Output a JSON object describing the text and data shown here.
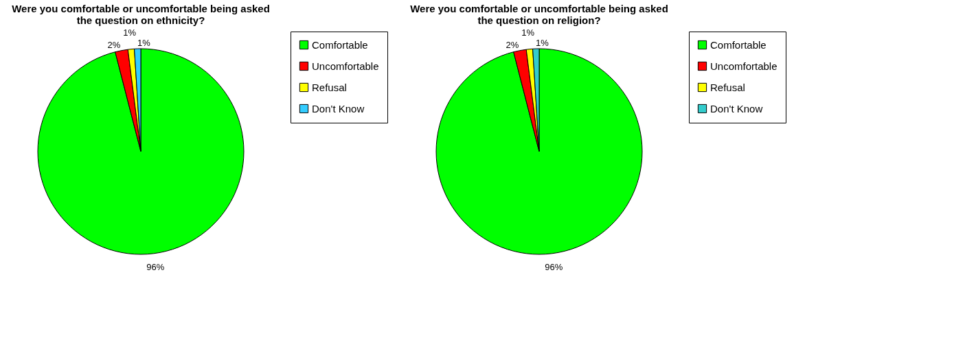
{
  "chart_data": [
    {
      "type": "pie",
      "title": "Were you comfortable or uncomfortable being asked the question on ethnicity?",
      "categories": [
        "Comfortable",
        "Uncomfortable",
        "Refusal",
        "Don't Know"
      ],
      "values": [
        96,
        2,
        1,
        1
      ],
      "colors": [
        "#00ff00",
        "#ff0000",
        "#ffff00",
        "#33ccff"
      ],
      "value_labels": [
        "96%",
        "2%",
        "1%",
        "1%"
      ],
      "legend": "right"
    },
    {
      "type": "pie",
      "title": "Were you comfortable or uncomfortable being asked the question on religion?",
      "categories": [
        "Comfortable",
        "Uncomfortable",
        "Refusal",
        "Don't Know"
      ],
      "values": [
        96,
        2,
        1,
        1
      ],
      "colors": [
        "#00ff00",
        "#ff0000",
        "#ffff00",
        "#33cccc"
      ],
      "value_labels": [
        "96%",
        "2%",
        "1%",
        "1%"
      ],
      "legend": "right"
    }
  ]
}
